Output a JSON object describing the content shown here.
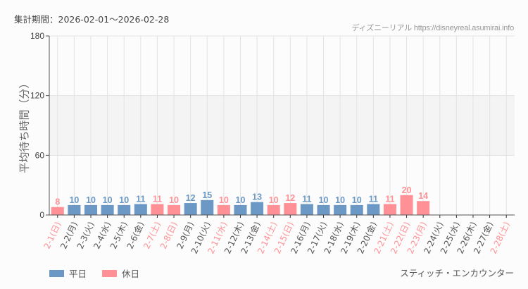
{
  "header": {
    "period_label": "集計期間：2026-02-01～2026-02-28",
    "credit": "ディズニーリアル https://disneyreal.asumirai.info"
  },
  "legend": {
    "weekday_label": "平日",
    "holiday_label": "休日"
  },
  "footer": {
    "attraction": "スティッチ・エンカウンター"
  },
  "colors": {
    "weekday": "#6b98c4",
    "holiday": "#ff9196",
    "band": "#f3f4f3",
    "grid": "#e3e3e3"
  },
  "chart_data": {
    "type": "bar",
    "title": "集計期間：2026-02-01～2026-02-28",
    "xlabel": "",
    "ylabel": "平均待ち時間（分）",
    "ylim": [
      0,
      180
    ],
    "yticks": [
      0,
      60,
      120,
      180
    ],
    "grid": true,
    "legend_position": "bottom-left",
    "categories": [
      "2-1(日)",
      "2-2(月)",
      "2-3(火)",
      "2-4(水)",
      "2-5(木)",
      "2-6(金)",
      "2-7(土)",
      "2-8(日)",
      "2-9(月)",
      "2-10(火)",
      "2-11(水)",
      "2-12(木)",
      "2-13(金)",
      "2-14(土)",
      "2-15(日)",
      "2-16(月)",
      "2-17(火)",
      "2-18(水)",
      "2-19(木)",
      "2-20(金)",
      "2-21(土)",
      "2-22(日)",
      "2-23(月)",
      "2-24(火)",
      "2-25(水)",
      "2-26(木)",
      "2-27(金)",
      "2-28(土)"
    ],
    "values": [
      8,
      10,
      10,
      10,
      10,
      11,
      11,
      10,
      12,
      15,
      10,
      10,
      13,
      10,
      12,
      11,
      10,
      10,
      10,
      11,
      11,
      20,
      14,
      null,
      null,
      null,
      null,
      null
    ],
    "day_type": [
      "holiday",
      "weekday",
      "weekday",
      "weekday",
      "weekday",
      "weekday",
      "holiday",
      "holiday",
      "weekday",
      "weekday",
      "holiday",
      "weekday",
      "weekday",
      "holiday",
      "holiday",
      "weekday",
      "weekday",
      "weekday",
      "weekday",
      "weekday",
      "holiday",
      "holiday",
      "holiday",
      "weekday",
      "weekday",
      "weekday",
      "weekday",
      "holiday"
    ],
    "series": [
      {
        "name": "平日",
        "values": [
          null,
          10,
          10,
          10,
          10,
          11,
          null,
          null,
          12,
          15,
          null,
          10,
          13,
          null,
          null,
          11,
          10,
          10,
          10,
          11,
          null,
          null,
          null,
          null,
          null,
          null,
          null,
          null
        ]
      },
      {
        "name": "休日",
        "values": [
          8,
          null,
          null,
          null,
          null,
          null,
          11,
          10,
          null,
          null,
          10,
          null,
          null,
          10,
          12,
          null,
          null,
          null,
          null,
          null,
          11,
          20,
          14,
          null,
          null,
          null,
          null,
          null
        ]
      }
    ]
  }
}
